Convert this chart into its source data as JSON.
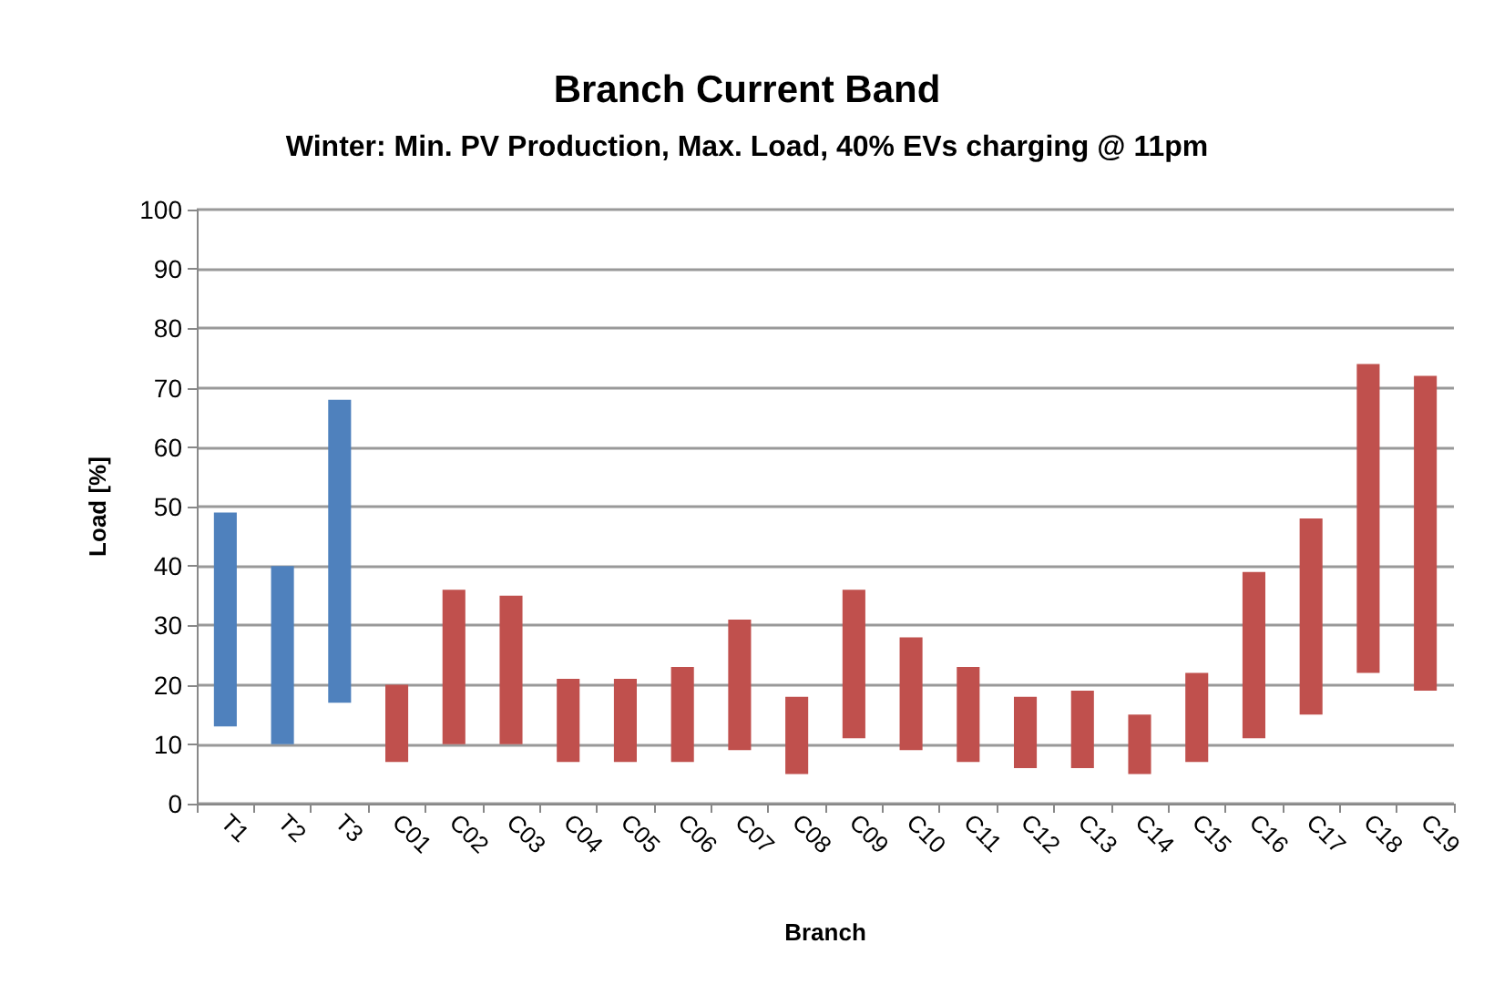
{
  "chart_data": {
    "type": "bar",
    "title": "Branch Current Band",
    "subtitle": "Winter: Min. PV Production, Max. Load, 40% EVs charging @ 11pm",
    "xlabel": "Branch",
    "ylabel": "Load [%]",
    "categories": [
      "T1",
      "T2",
      "T3",
      "C01",
      "C02",
      "C03",
      "C04",
      "C05",
      "C06",
      "C07",
      "C08",
      "C09",
      "C10",
      "C11",
      "C12",
      "C13",
      "C14",
      "C15",
      "C16",
      "C17",
      "C18",
      "C19"
    ],
    "base": [
      13,
      10,
      17,
      7,
      10,
      10,
      7,
      7,
      7,
      9,
      5,
      11,
      9,
      7,
      6,
      6,
      5,
      7,
      11,
      15,
      22,
      19
    ],
    "values": [
      36,
      30,
      51,
      13,
      26,
      25,
      14,
      14,
      16,
      22,
      13,
      25,
      19,
      16,
      12,
      13,
      10,
      15,
      28,
      33,
      52,
      53
    ],
    "colors": [
      "#4f81bd",
      "#4f81bd",
      "#4f81bd",
      "#c0504d",
      "#c0504d",
      "#c0504d",
      "#c0504d",
      "#c0504d",
      "#c0504d",
      "#c0504d",
      "#c0504d",
      "#c0504d",
      "#c0504d",
      "#c0504d",
      "#c0504d",
      "#c0504d",
      "#c0504d",
      "#c0504d",
      "#c0504d",
      "#c0504d",
      "#c0504d",
      "#c0504d"
    ],
    "ylim": [
      0,
      100
    ],
    "yticks": [
      0,
      10,
      20,
      30,
      40,
      50,
      60,
      70,
      80,
      90,
      100
    ],
    "grid": "y"
  }
}
